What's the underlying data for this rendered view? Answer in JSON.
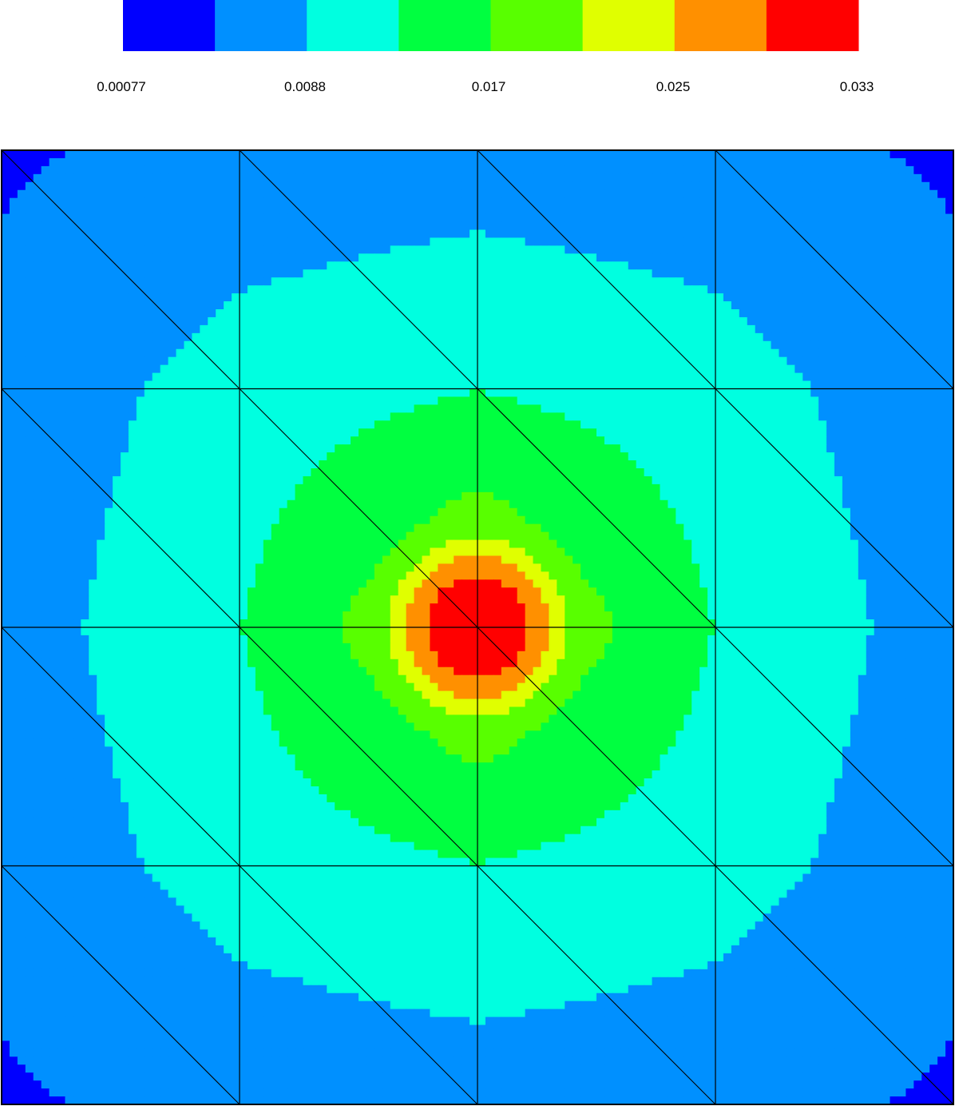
{
  "chart_data": {
    "type": "heatmap",
    "title": "",
    "xlabel": "",
    "ylabel": "",
    "colorbar": {
      "colors": [
        "#0000ff",
        "#0090ff",
        "#00ffe0",
        "#00ff40",
        "#58ff00",
        "#e0ff00",
        "#ff9000",
        "#ff0000"
      ],
      "tick_labels": [
        "0.00077",
        "0.0088",
        "0.017",
        "0.025",
        "0.033"
      ],
      "tick_values": [
        0.00077,
        0.0088,
        0.017,
        0.025,
        0.033
      ]
    },
    "mesh": {
      "rows": 4,
      "cols": 4,
      "element": "triangle",
      "diagonal": "top-left to bottom-right"
    },
    "field": {
      "peak_value": 0.034,
      "peak_location": "center",
      "corner_value": 0.0005,
      "grid_rows": 5,
      "grid_cols": 5,
      "node_values": [
        [
          0.0005,
          0.004,
          0.005,
          0.004,
          0.0005
        ],
        [
          0.004,
          0.012,
          0.016,
          0.012,
          0.004
        ],
        [
          0.005,
          0.016,
          0.034,
          0.016,
          0.005
        ],
        [
          0.004,
          0.012,
          0.016,
          0.012,
          0.004
        ],
        [
          0.0005,
          0.004,
          0.005,
          0.004,
          0.0005
        ]
      ]
    }
  }
}
